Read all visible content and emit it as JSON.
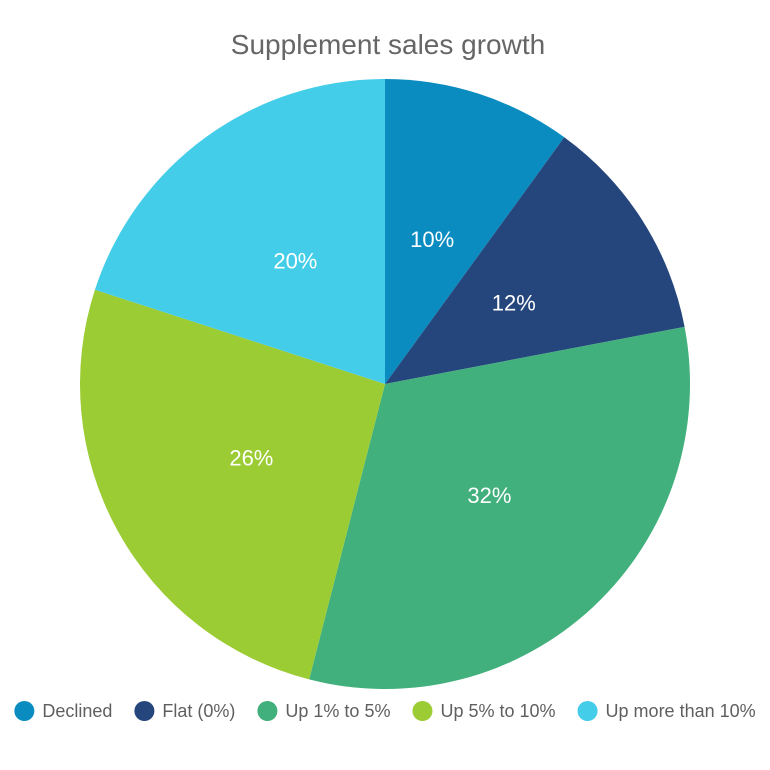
{
  "chart_data": {
    "type": "pie",
    "title": "Supplement sales growth",
    "categories": [
      "Declined",
      "Flat (0%)",
      "Up 1% to 5%",
      "Up 5% to 10%",
      "Up more than 10%"
    ],
    "values": [
      10,
      12,
      32,
      26,
      20
    ],
    "value_labels": [
      "10%",
      "12%",
      "32%",
      "26%",
      "20%"
    ],
    "colors": [
      "#0a8cc0",
      "#25467c",
      "#41b07c",
      "#9bcc34",
      "#44cde9"
    ],
    "legend_placement": "bottom",
    "start_angle_deg": 0,
    "direction": "clockwise"
  }
}
